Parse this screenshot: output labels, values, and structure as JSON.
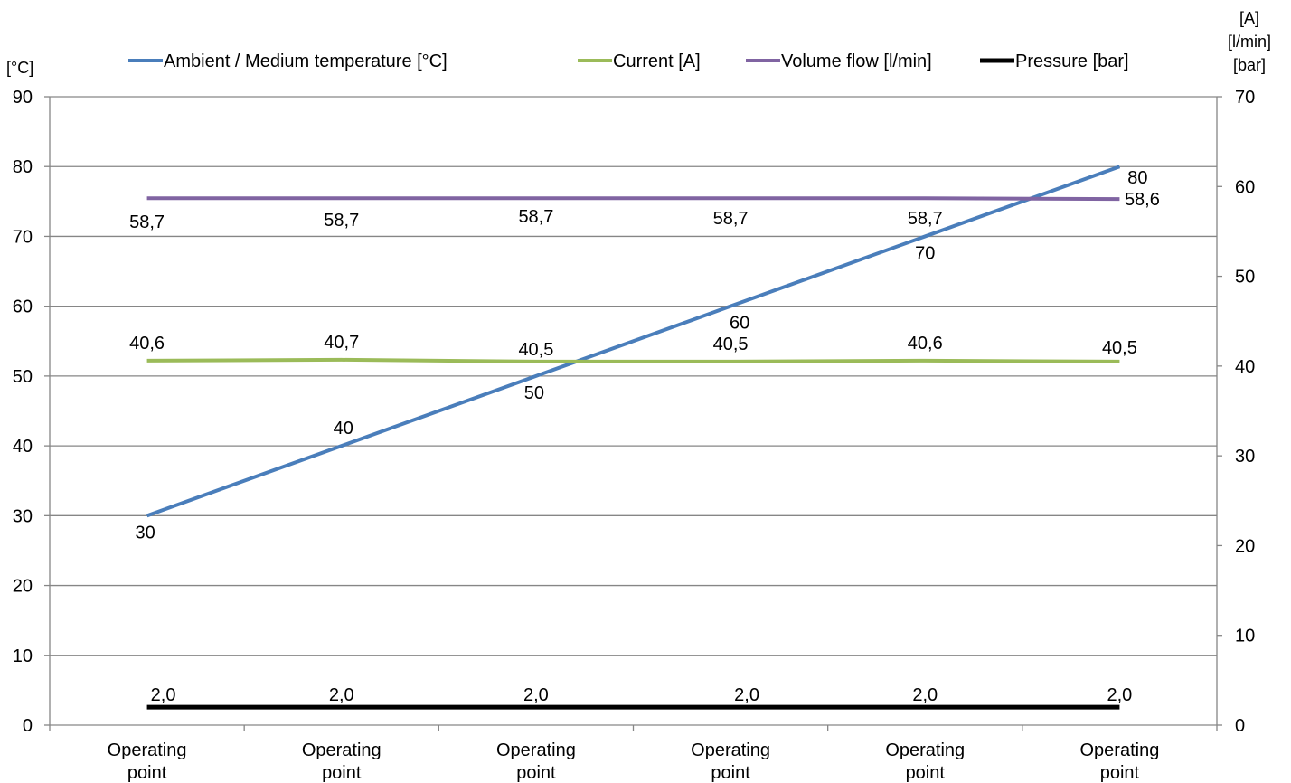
{
  "chart_data": {
    "type": "line",
    "left_axis": {
      "unit": "[°C]",
      "range": [
        0,
        90
      ],
      "ticks": [
        "0",
        "10",
        "20",
        "30",
        "40",
        "50",
        "60",
        "70",
        "80",
        "90"
      ]
    },
    "right_axis": {
      "units": [
        "[A]",
        "[l/min]",
        "[bar]"
      ],
      "range": [
        0,
        70
      ],
      "ticks": [
        "0",
        "10",
        "20",
        "30",
        "40",
        "50",
        "60",
        "70"
      ]
    },
    "categories": [
      "Operating point",
      "Operating point",
      "Operating point",
      "Operating point",
      "Operating point",
      "Operating point"
    ],
    "grid": "horizontal",
    "legend_position": "top",
    "series": [
      {
        "name": "Ambient / Medium temperature [°C]",
        "axis": "left",
        "color": "#4a7ebb",
        "values": [
          30,
          40,
          50,
          60,
          70,
          80
        ],
        "labels": [
          "30",
          "40",
          "50",
          "60",
          "70",
          "80"
        ]
      },
      {
        "name": "Current [A]",
        "axis": "right",
        "color": "#9bbb59",
        "values": [
          40.6,
          40.7,
          40.5,
          40.5,
          40.6,
          40.5
        ],
        "labels": [
          "40,6",
          "40,7",
          "40,5",
          "40,5",
          "40,6",
          "40,5"
        ]
      },
      {
        "name": "Volume flow [l/min]",
        "axis": "right",
        "color": "#8064a2",
        "values": [
          58.7,
          58.7,
          58.7,
          58.7,
          58.7,
          58.6
        ],
        "labels": [
          "58,7",
          "58,7",
          "58,7",
          "58,7",
          "58,7",
          "58,6"
        ]
      },
      {
        "name": "Pressure [bar]",
        "axis": "right",
        "color": "#000000",
        "values": [
          2.0,
          2.0,
          2.0,
          2.0,
          2.0,
          2.0
        ],
        "labels": [
          "2,0",
          "2,0",
          "2,0",
          "2,0",
          "2,0",
          "2,0"
        ]
      }
    ]
  }
}
